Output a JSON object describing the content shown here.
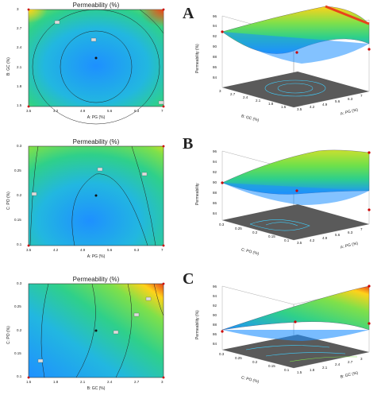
{
  "letters": [
    "A",
    "B",
    "C"
  ],
  "chart_data": [
    {
      "type": "heatmap",
      "subtype": "contour",
      "title": "Permeability (%)",
      "xlabel": "A: PG (%)",
      "ylabel": "B: GC (%)",
      "xticks": [
        "3.5",
        "4.2",
        "4.9",
        "5.6",
        "6.3",
        "7"
      ],
      "yticks": [
        "1.5",
        "1.8",
        "2.1",
        "2.4",
        "2.7",
        "3"
      ],
      "xlim": [
        3.5,
        7
      ],
      "ylim": [
        1.5,
        3
      ],
      "center_point": [
        5.25,
        2.25
      ],
      "contour_labels": [
        "88",
        "90",
        "92"
      ]
    },
    {
      "type": "surface",
      "zlabel": "Permeability (%)",
      "xlabel": "A: PG (%)",
      "ylabel": "B: GC (%)",
      "zticks": [
        "84",
        "86",
        "88",
        "90",
        "92",
        "94",
        "96"
      ],
      "xticks": [
        "3.5",
        "4.2",
        "4.9",
        "5.6",
        "6.3",
        "7"
      ],
      "yticks": [
        "1.5",
        "1.8",
        "2.1",
        "2.4",
        "2.7",
        "3"
      ]
    },
    {
      "type": "heatmap",
      "subtype": "contour",
      "title": "Permeability (%)",
      "xlabel": "A: PG (%)",
      "ylabel": "C: PO (%)",
      "xticks": [
        "3.5",
        "4.2",
        "4.9",
        "5.6",
        "6.3",
        "7"
      ],
      "yticks": [
        "0.1",
        "0.15",
        "0.2",
        "0.25",
        "0.3"
      ],
      "xlim": [
        3.5,
        7
      ],
      "ylim": [
        0.1,
        0.3
      ],
      "center_point": [
        5.25,
        0.2
      ],
      "contour_labels": [
        "88",
        "90",
        "92"
      ]
    },
    {
      "type": "surface",
      "zlabel": "Permeability",
      "xlabel": "A: PG (%)",
      "ylabel": "C: PO (%)",
      "zticks": [
        "84",
        "86",
        "88",
        "90",
        "92",
        "94",
        "96"
      ],
      "xticks": [
        "3.5",
        "4.2",
        "4.9",
        "5.6",
        "6.3",
        "7"
      ],
      "yticks": [
        "0.1",
        "0.15",
        "0.2",
        "0.25",
        "0.3"
      ]
    },
    {
      "type": "heatmap",
      "subtype": "contour",
      "title": "Permeability (%)",
      "xlabel": "B: GC (%)",
      "ylabel": "C: PO (%)",
      "xticks": [
        "1.5",
        "1.8",
        "2.1",
        "2.4",
        "2.7",
        "3"
      ],
      "yticks": [
        "0.1",
        "0.15",
        "0.2",
        "0.25",
        "0.3"
      ],
      "xlim": [
        1.5,
        3
      ],
      "ylim": [
        0.1,
        0.3
      ],
      "center_point": [
        2.25,
        0.2
      ],
      "contour_labels": [
        "88",
        "90",
        "92",
        "94"
      ]
    },
    {
      "type": "surface",
      "zlabel": "Permeability (%)",
      "xlabel": "B: GC (%)",
      "ylabel": "C: PO (%)",
      "zticks": [
        "84",
        "86",
        "88",
        "90",
        "92",
        "94",
        "96"
      ],
      "xticks": [
        "1.5",
        "1.8",
        "2.1",
        "2.4",
        "2.7",
        "3"
      ],
      "yticks": [
        "0.1",
        "0.15",
        "0.2",
        "0.25",
        "0.3"
      ]
    }
  ],
  "colors": {
    "low": "#1e90ff",
    "mid": "#2fd08a",
    "high": "#ffd21a",
    "peak": "#e8431c",
    "floor": "#5a5a5a"
  }
}
